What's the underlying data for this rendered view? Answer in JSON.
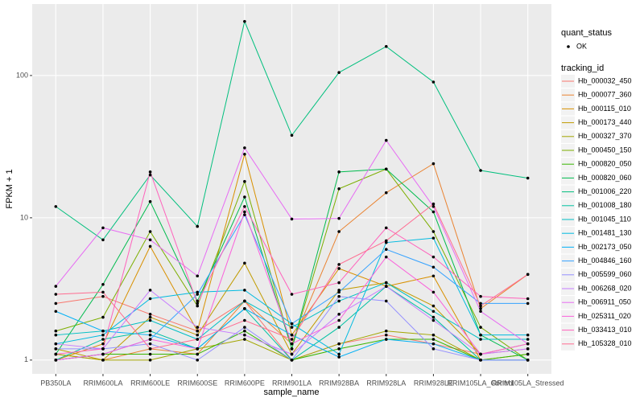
{
  "chart_data": {
    "type": "line",
    "log_y": true,
    "grid": true,
    "x_label": "sample_name",
    "y_label": "FPKM + 1",
    "shape_legend_title": "quant_status",
    "shape_legend_labels": [
      "OK"
    ],
    "legend_title": "tracking_id",
    "categories": [
      "PB350LA",
      "RRIM600LA",
      "RRIM600LE",
      "RRIM600SE",
      "RRIM600PE",
      "RRIM901LA",
      "RRIM928BA",
      "RRIM928LA",
      "RRIM928LE",
      "RRIM105LA_Control",
      "RRIM105LA_Stressed"
    ],
    "ylim": [
      0.8,
      318
    ],
    "yticks": [
      1,
      10,
      100
    ],
    "series": [
      {
        "name": "Hb_000032_450",
        "color": "#F8766D",
        "values": [
          2.5,
          2.8,
          2.1,
          1.6,
          2.6,
          1.0,
          1.3,
          1.5,
          1.3,
          1.1,
          1.2
        ]
      },
      {
        "name": "Hb_000077_360",
        "color": "#EA8331",
        "values": [
          1.1,
          1.0,
          1.2,
          1.1,
          2.6,
          1.3,
          8.0,
          15,
          24,
          2.3,
          4.0
        ]
      },
      {
        "name": "Hb_000115_010",
        "color": "#D89000",
        "values": [
          1.0,
          1.3,
          6.3,
          1.6,
          28,
          1.5,
          4.4,
          3.3,
          3.9,
          1.0,
          1.0
        ]
      },
      {
        "name": "Hb_000173_440",
        "color": "#C09B00",
        "values": [
          1.2,
          1.0,
          2.0,
          1.5,
          4.8,
          1.1,
          3.1,
          3.5,
          2.4,
          1.1,
          1.3
        ]
      },
      {
        "name": "Hb_000327_370",
        "color": "#A3A500",
        "values": [
          1.1,
          1.0,
          1.0,
          1.2,
          1.4,
          1.0,
          1.3,
          1.6,
          1.5,
          1.0,
          1.1
        ]
      },
      {
        "name": "Hb_000450_150",
        "color": "#7CAE00",
        "values": [
          1.6,
          2.0,
          8.0,
          2.4,
          18,
          1.2,
          16,
          22,
          8.0,
          1.7,
          1.0
        ]
      },
      {
        "name": "Hb_000820_050",
        "color": "#39B600",
        "values": [
          1.0,
          1.1,
          1.1,
          1.1,
          1.6,
          1.0,
          1.2,
          1.4,
          1.4,
          1.0,
          1.1
        ]
      },
      {
        "name": "Hb_000820_060",
        "color": "#00BB4E",
        "values": [
          1.1,
          3.4,
          13,
          2.6,
          14,
          1.2,
          21,
          22,
          11,
          1.5,
          1.0
        ]
      },
      {
        "name": "Hb_001006_220",
        "color": "#00BF7D",
        "values": [
          12,
          7,
          20,
          8.7,
          240,
          38,
          105,
          160,
          90,
          21.5,
          19
        ]
      },
      {
        "name": "Hb_001008_180",
        "color": "#00C1A3",
        "values": [
          1.0,
          1.4,
          1.6,
          1.2,
          2.3,
          1.0,
          1.7,
          3.3,
          2.0,
          1.0,
          1.0
        ]
      },
      {
        "name": "Hb_001045_110",
        "color": "#00BFC4",
        "values": [
          1.5,
          1.6,
          1.9,
          1.4,
          2.6,
          1.7,
          2.6,
          3.5,
          2.2,
          1.4,
          1.4
        ]
      },
      {
        "name": "Hb_001481_130",
        "color": "#00BAE0",
        "values": [
          1.3,
          1.5,
          2.7,
          3.0,
          3.1,
          1.8,
          1.1,
          6.7,
          7.2,
          1.5,
          1.5
        ]
      },
      {
        "name": "Hb_002173_050",
        "color": "#00B0F6",
        "values": [
          2.2,
          1.6,
          1.5,
          1.2,
          2.3,
          1.5,
          1.05,
          1.4,
          1.3,
          1.0,
          1.0
        ]
      },
      {
        "name": "Hb_004846_160",
        "color": "#35A2FF",
        "values": [
          1.0,
          1.1,
          1.4,
          2.9,
          10.5,
          1.8,
          3.0,
          6.0,
          4.5,
          2.5,
          2.5
        ]
      },
      {
        "name": "Hb_005599_060",
        "color": "#9590FF",
        "values": [
          1.2,
          1.2,
          1.3,
          1.0,
          1.7,
          1.0,
          2.8,
          2.6,
          1.2,
          1.0,
          1.0
        ]
      },
      {
        "name": "Hb_006268_020",
        "color": "#C77CFF",
        "values": [
          1.3,
          1.2,
          3.1,
          1.7,
          1.5,
          1.1,
          2.1,
          3.3,
          1.9,
          1.1,
          1.2
        ]
      },
      {
        "name": "Hb_006911_050",
        "color": "#E76BF3",
        "values": [
          3.3,
          8.5,
          7.0,
          3.9,
          31,
          9.8,
          9.9,
          35,
          12,
          2.2,
          1.3
        ]
      },
      {
        "name": "Hb_025311_020",
        "color": "#FA62DB",
        "values": [
          1.0,
          1.1,
          1.4,
          1.2,
          11,
          1.3,
          1.9,
          5.3,
          3.0,
          1.1,
          1.3
        ]
      },
      {
        "name": "Hb_033413_010",
        "color": "#FF62BC",
        "values": [
          1.1,
          1.2,
          21,
          2.5,
          12,
          2.9,
          3.5,
          8.5,
          5.3,
          2.8,
          2.7
        ]
      },
      {
        "name": "Hb_105328_010",
        "color": "#FF6C91",
        "values": [
          2.9,
          3.0,
          1.2,
          1.4,
          1.9,
          1.4,
          4.7,
          6.9,
          12.5,
          2.4,
          4.0
        ]
      }
    ]
  }
}
